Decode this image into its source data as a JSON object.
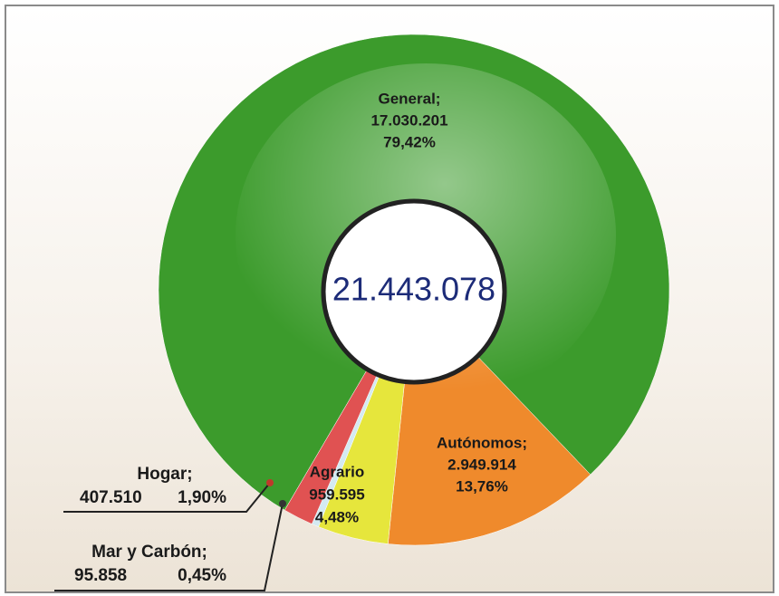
{
  "chart_data": {
    "type": "donut",
    "categories": [
      "General;",
      "Autónomos;",
      "Agrario",
      "Mar y Carbón;",
      "Hogar;"
    ],
    "values": [
      17030201,
      2949914,
      959595,
      95858,
      407510
    ],
    "value_labels": [
      "17.030.201",
      "2.949.914",
      "959.595",
      "95.858",
      "407.510"
    ],
    "percents": [
      79.42,
      13.76,
      4.48,
      0.45,
      1.9
    ],
    "percent_labels": [
      "79,42%",
      "13,76%",
      "4,48%",
      "0,45%",
      "1,90%"
    ],
    "colors": [
      "#3c9b2c",
      "#ef8a2c",
      "#e6e63c",
      "#d4eaf2",
      "#e05252"
    ],
    "center_label": "21.443.078"
  }
}
